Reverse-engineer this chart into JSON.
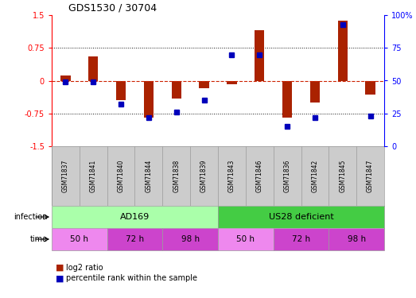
{
  "title": "GDS1530 / 30704",
  "samples": [
    "GSM71837",
    "GSM71841",
    "GSM71840",
    "GSM71844",
    "GSM71838",
    "GSM71839",
    "GSM71843",
    "GSM71846",
    "GSM71836",
    "GSM71842",
    "GSM71845",
    "GSM71847"
  ],
  "log2_ratio": [
    0.12,
    0.55,
    -0.45,
    -0.85,
    -0.4,
    -0.18,
    -0.08,
    1.15,
    -0.85,
    -0.5,
    1.38,
    -0.32
  ],
  "percentile_rank": [
    49,
    49,
    32,
    22,
    26,
    35,
    70,
    70,
    15,
    22,
    93,
    23
  ],
  "bar_color": "#aa2200",
  "dot_color": "#0000bb",
  "zero_line_color": "#cc2200",
  "grid_color": "#111111",
  "ylim_left": [
    -1.5,
    1.5
  ],
  "ylim_right": [
    0,
    100
  ],
  "yticks_left": [
    -1.5,
    -0.75,
    0,
    0.75,
    1.5
  ],
  "yticks_right": [
    0,
    25,
    50,
    75,
    100
  ],
  "infection_ad169_color": "#aaffaa",
  "infection_us28_color": "#44cc44",
  "time_50h_color": "#ee88ee",
  "time_72h_color": "#cc44cc",
  "time_98h_color": "#cc44cc",
  "background_plot": "#ffffff",
  "background_samples": "#cccccc",
  "border_color": "#999999",
  "legend_entries": [
    "log2 ratio",
    "percentile rank within the sample"
  ],
  "legend_colors": [
    "#aa2200",
    "#0000bb"
  ]
}
